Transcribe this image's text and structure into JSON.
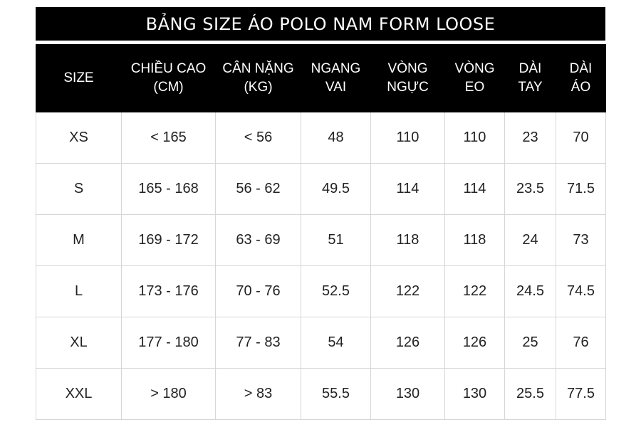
{
  "title": "BẢNG SIZE ÁO POLO NAM FORM LOOSE",
  "columns": [
    {
      "line1": "SIZE",
      "line2": ""
    },
    {
      "line1": "CHIỀU CAO",
      "line2": "(CM)"
    },
    {
      "line1": "CÂN NẶNG",
      "line2": "(KG)"
    },
    {
      "line1": "NGANG",
      "line2": "VAI"
    },
    {
      "line1": "VÒNG",
      "line2": "NGỰC"
    },
    {
      "line1": "VÒNG",
      "line2": "EO"
    },
    {
      "line1": "DÀI",
      "line2": "TAY"
    },
    {
      "line1": "DÀI",
      "line2": "ÁO"
    }
  ],
  "rows": [
    [
      "XS",
      "< 165",
      "< 56",
      "48",
      "110",
      "110",
      "23",
      "70"
    ],
    [
      "S",
      "165 - 168",
      "56 - 62",
      "49.5",
      "114",
      "114",
      "23.5",
      "71.5"
    ],
    [
      "M",
      "169 - 172",
      "63 - 69",
      "51",
      "118",
      "118",
      "24",
      "73"
    ],
    [
      "L",
      "173 - 176",
      "70 - 76",
      "52.5",
      "122",
      "122",
      "24.5",
      "74.5"
    ],
    [
      "XL",
      "177 - 180",
      "77 - 83",
      "54",
      "126",
      "126",
      "25",
      "76"
    ],
    [
      "XXL",
      "> 180",
      "> 83",
      "55.5",
      "130",
      "130",
      "25.5",
      "77.5"
    ]
  ]
}
